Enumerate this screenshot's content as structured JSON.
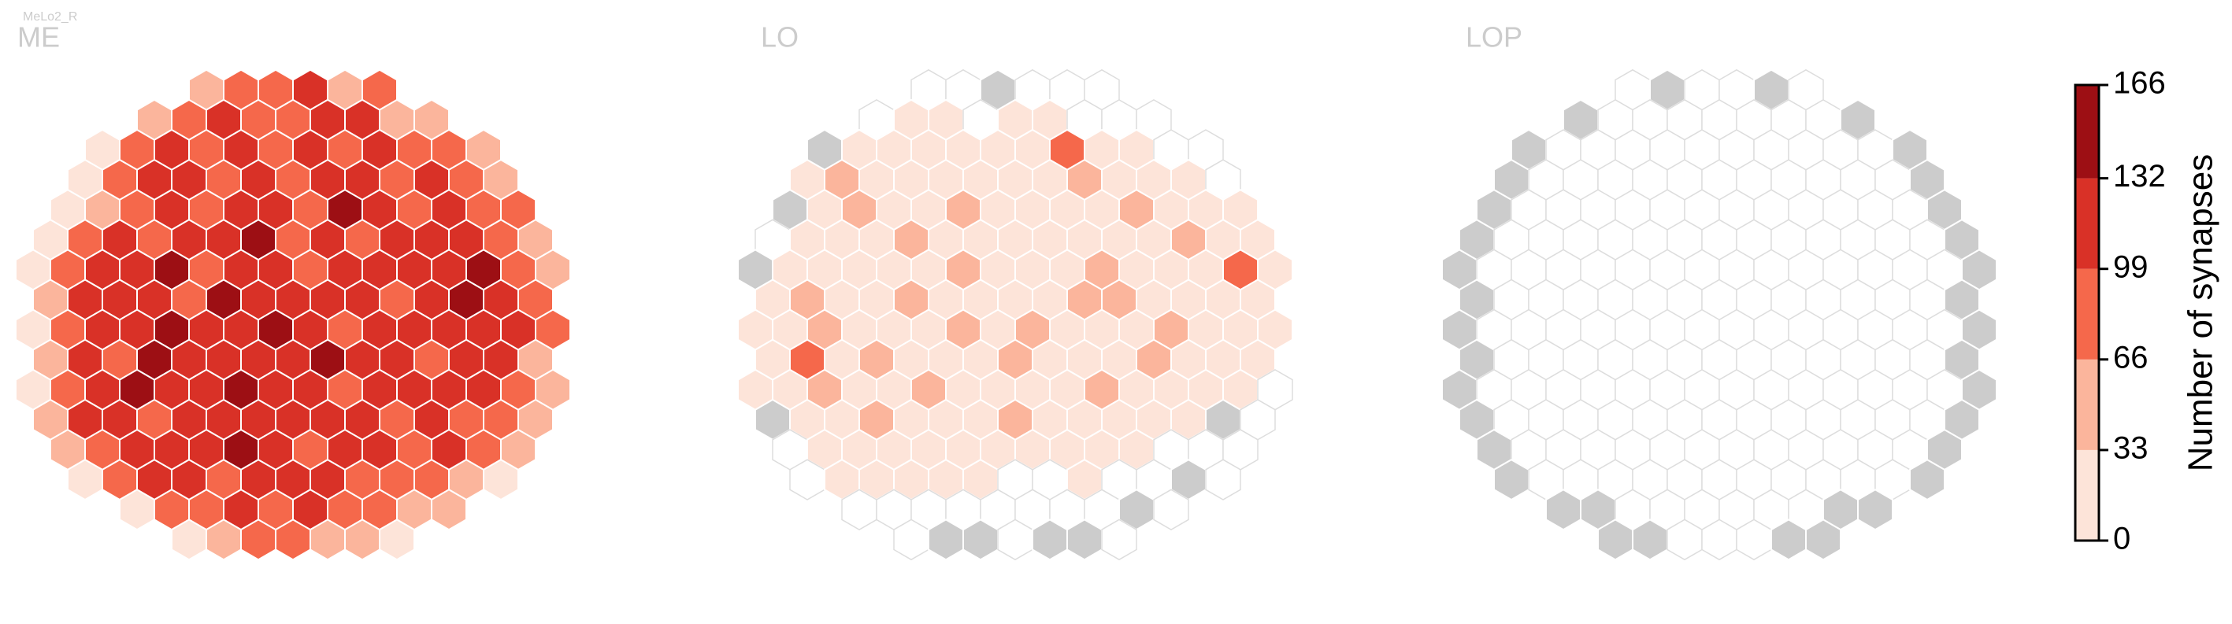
{
  "chart_data": {
    "type": "hexmap",
    "subtitle": "MeLo2_R",
    "zero_color": "#cccccc",
    "panels": [
      {
        "title": "ME",
        "rows": [
          [
            40,
            90,
            75,
            110,
            45,
            80
          ],
          [
            50,
            95,
            120,
            85,
            70,
            100,
            115,
            60,
            45
          ],
          [
            30,
            85,
            110,
            95,
            120,
            80,
            105,
            90,
            125,
            75,
            95,
            55
          ],
          [
            20,
            75,
            100,
            130,
            90,
            115,
            85,
            120,
            100,
            95,
            110,
            80,
            60
          ],
          [
            15,
            60,
            95,
            115,
            80,
            125,
            100,
            90,
            135,
            105,
            85,
            120,
            95,
            70
          ],
          [
            10,
            70,
            105,
            90,
            120,
            100,
            140,
            95,
            110,
            85,
            125,
            100,
            115,
            90,
            60
          ],
          [
            25,
            80,
            115,
            100,
            135,
            90,
            105,
            125,
            95,
            115,
            100,
            130,
            110,
            140,
            95,
            50
          ],
          [
            55,
            100,
            125,
            110,
            95,
            145,
            115,
            100,
            120,
            105,
            90,
            125,
            135,
            110,
            80
          ],
          [
            30,
            90,
            130,
            105,
            140,
            115,
            100,
            155,
            110,
            95,
            120,
            105,
            115,
            100,
            125,
            70
          ],
          [
            60,
            110,
            95,
            135,
            120,
            105,
            125,
            110,
            140,
            100,
            115,
            90,
            120,
            105,
            65
          ],
          [
            20,
            85,
            120,
            140,
            100,
            115,
            150,
            125,
            105,
            95,
            110,
            120,
            100,
            115,
            85,
            45
          ],
          [
            40,
            105,
            115,
            95,
            130,
            120,
            110,
            100,
            125,
            115,
            90,
            105,
            95,
            75,
            40
          ],
          [
            35,
            95,
            110,
            125,
            105,
            145,
            115,
            95,
            100,
            120,
            85,
            100,
            70,
            45
          ],
          [
            30,
            80,
            100,
            115,
            90,
            120,
            105,
            110,
            85,
            95,
            75,
            55,
            30
          ],
          [
            25,
            70,
            95,
            110,
            85,
            100,
            90,
            75,
            60,
            35
          ],
          [
            20,
            50,
            80,
            70,
            60,
            45,
            25
          ]
        ]
      },
      {
        "title": "LO",
        "rows": [
          [
            null,
            null,
            0,
            null,
            null,
            null
          ],
          [
            null,
            15,
            15,
            null,
            15,
            15,
            null,
            null,
            null
          ],
          [
            0,
            15,
            15,
            15,
            15,
            15,
            15,
            70,
            15,
            15,
            null,
            null
          ],
          [
            15,
            45,
            15,
            15,
            15,
            15,
            15,
            15,
            45,
            15,
            15,
            15,
            null
          ],
          [
            0,
            15,
            45,
            15,
            15,
            45,
            15,
            15,
            15,
            15,
            45,
            15,
            15,
            15
          ],
          [
            null,
            15,
            15,
            15,
            45,
            15,
            15,
            15,
            15,
            15,
            15,
            15,
            45,
            15,
            15
          ],
          [
            0,
            15,
            15,
            15,
            15,
            15,
            45,
            15,
            15,
            15,
            45,
            15,
            15,
            15,
            85,
            15
          ],
          [
            15,
            45,
            15,
            15,
            45,
            15,
            15,
            15,
            15,
            45,
            45,
            15,
            15,
            15,
            15
          ],
          [
            15,
            15,
            45,
            15,
            15,
            15,
            45,
            15,
            45,
            15,
            15,
            15,
            45,
            15,
            15,
            15
          ],
          [
            15,
            70,
            15,
            45,
            15,
            15,
            15,
            45,
            15,
            15,
            15,
            45,
            15,
            15,
            15
          ],
          [
            15,
            15,
            45,
            15,
            15,
            45,
            15,
            15,
            15,
            15,
            45,
            15,
            15,
            15,
            15,
            null
          ],
          [
            0,
            15,
            15,
            45,
            15,
            15,
            15,
            45,
            15,
            15,
            15,
            15,
            15,
            0,
            null
          ],
          [
            null,
            15,
            15,
            15,
            15,
            15,
            15,
            15,
            15,
            15,
            15,
            null,
            null,
            null
          ],
          [
            null,
            15,
            15,
            15,
            15,
            15,
            null,
            null,
            15,
            null,
            null,
            0,
            null
          ],
          [
            null,
            null,
            null,
            null,
            null,
            null,
            null,
            null,
            0,
            null
          ],
          [
            null,
            0,
            0,
            null,
            0,
            0,
            null
          ]
        ]
      },
      {
        "title": "LOP",
        "rows": [
          [
            null,
            0,
            null,
            null,
            0,
            null
          ],
          [
            0,
            null,
            null,
            null,
            null,
            null,
            null,
            null,
            0
          ],
          [
            0,
            null,
            null,
            null,
            null,
            null,
            null,
            null,
            null,
            null,
            null,
            0
          ],
          [
            0,
            null,
            null,
            null,
            null,
            null,
            null,
            null,
            null,
            null,
            null,
            null,
            0
          ],
          [
            0,
            null,
            null,
            null,
            null,
            null,
            null,
            null,
            null,
            null,
            null,
            null,
            null,
            0
          ],
          [
            0,
            null,
            null,
            null,
            null,
            null,
            null,
            null,
            null,
            null,
            null,
            null,
            null,
            null,
            0
          ],
          [
            0,
            null,
            null,
            null,
            null,
            null,
            null,
            null,
            null,
            null,
            null,
            null,
            null,
            null,
            null,
            0
          ],
          [
            0,
            null,
            null,
            null,
            null,
            null,
            null,
            null,
            null,
            null,
            null,
            null,
            null,
            null,
            0
          ],
          [
            0,
            null,
            null,
            null,
            null,
            null,
            null,
            null,
            null,
            null,
            null,
            null,
            null,
            null,
            null,
            0
          ],
          [
            0,
            null,
            null,
            null,
            null,
            null,
            null,
            null,
            null,
            null,
            null,
            null,
            null,
            null,
            0
          ],
          [
            0,
            null,
            null,
            null,
            null,
            null,
            null,
            null,
            null,
            null,
            null,
            null,
            null,
            null,
            null,
            0
          ],
          [
            0,
            null,
            null,
            null,
            null,
            null,
            null,
            null,
            null,
            null,
            null,
            null,
            null,
            null,
            0
          ],
          [
            0,
            null,
            null,
            null,
            null,
            null,
            null,
            null,
            null,
            null,
            null,
            null,
            null,
            0
          ],
          [
            0,
            null,
            null,
            null,
            null,
            null,
            null,
            null,
            null,
            null,
            null,
            null,
            0
          ],
          [
            0,
            0,
            null,
            null,
            null,
            null,
            null,
            null,
            0,
            0
          ],
          [
            0,
            0,
            null,
            null,
            null,
            0,
            0
          ]
        ]
      }
    ],
    "colorbar": {
      "label": "Number of synapses",
      "ylim": [
        0,
        166
      ],
      "yticks": [
        0,
        33,
        66,
        99,
        132,
        166
      ],
      "colors": [
        "#fde4d9",
        "#fbb59c",
        "#f5684b",
        "#d93127",
        "#9d0f14"
      ]
    }
  }
}
